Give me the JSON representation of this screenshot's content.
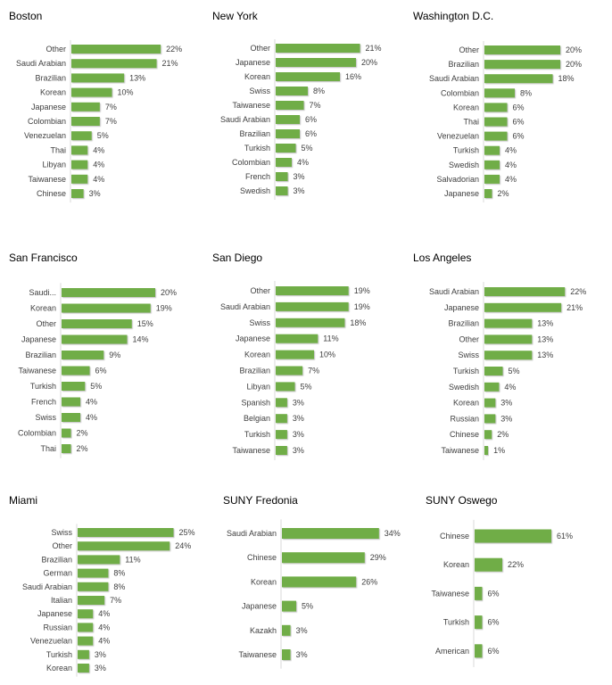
{
  "bar_color": "#70AD47",
  "chart_data": [
    {
      "type": "bar",
      "orientation": "horizontal",
      "title": "Boston",
      "unit": "%",
      "categories": [
        "Other",
        "Saudi Arabian",
        "Brazilian",
        "Korean",
        "Japanese",
        "Colombian",
        "Venezuelan",
        "Thai",
        "Libyan",
        "Taiwanese",
        "Chinese"
      ],
      "values": [
        22,
        21,
        13,
        10,
        7,
        7,
        5,
        4,
        4,
        4,
        3
      ]
    },
    {
      "type": "bar",
      "orientation": "horizontal",
      "title": "New York",
      "unit": "%",
      "categories": [
        "Other",
        "Japanese",
        "Korean",
        "Swiss",
        "Taiwanese",
        "Saudi Arabian",
        "Brazilian",
        "Turkish",
        "Colombian",
        "French",
        "Swedish"
      ],
      "values": [
        21,
        20,
        16,
        8,
        7,
        6,
        6,
        5,
        4,
        3,
        3
      ]
    },
    {
      "type": "bar",
      "orientation": "horizontal",
      "title": "Washington D.C.",
      "unit": "%",
      "categories": [
        "Other",
        "Brazilian",
        "Saudi Arabian",
        "Colombian",
        "Korean",
        "Thai",
        "Venezuelan",
        "Turkish",
        "Swedish",
        "Salvadorian",
        "Japanese"
      ],
      "values": [
        20,
        20,
        18,
        8,
        6,
        6,
        6,
        4,
        4,
        4,
        2
      ]
    },
    {
      "type": "bar",
      "orientation": "horizontal",
      "title": "San Francisco",
      "unit": "%",
      "categories": [
        "Saudi...",
        "Korean",
        "Other",
        "Japanese",
        "Brazilian",
        "Taiwanese",
        "Turkish",
        "French",
        "Swiss",
        "Colombian",
        "Thai"
      ],
      "values": [
        20,
        19,
        15,
        14,
        9,
        6,
        5,
        4,
        4,
        2,
        2
      ]
    },
    {
      "type": "bar",
      "orientation": "horizontal",
      "title": "San Diego",
      "unit": "%",
      "categories": [
        "Other",
        "Saudi Arabian",
        "Swiss",
        "Japanese",
        "Korean",
        "Brazilian",
        "Libyan",
        "Spanish",
        "Belgian",
        "Turkish",
        "Taiwanese"
      ],
      "values": [
        19,
        19,
        18,
        11,
        10,
        7,
        5,
        3,
        3,
        3,
        3
      ]
    },
    {
      "type": "bar",
      "orientation": "horizontal",
      "title": "Los Angeles",
      "unit": "%",
      "categories": [
        "Saudi Arabian",
        "Japanese",
        "Brazilian",
        "Other",
        "Swiss",
        "Turkish",
        "Swedish",
        "Korean",
        "Russian",
        "Chinese",
        "Taiwanese"
      ],
      "values": [
        22,
        21,
        13,
        13,
        13,
        5,
        4,
        3,
        3,
        2,
        1
      ]
    },
    {
      "type": "bar",
      "orientation": "horizontal",
      "title": "Miami",
      "unit": "%",
      "categories": [
        "Swiss",
        "Other",
        "Brazilian",
        "German",
        "Saudi Arabian",
        "Italian",
        "Japanese",
        "Russian",
        "Venezuelan",
        "Turkish",
        "Korean"
      ],
      "values": [
        25,
        24,
        11,
        8,
        8,
        7,
        4,
        4,
        4,
        3,
        3
      ]
    },
    {
      "type": "bar",
      "orientation": "horizontal",
      "title": "SUNY Fredonia",
      "unit": "%",
      "categories": [
        "Saudi Arabian",
        "Chinese",
        "Korean",
        "Japanese",
        "Kazakh",
        "Taiwanese"
      ],
      "values": [
        34,
        29,
        26,
        5,
        3,
        3
      ]
    },
    {
      "type": "bar",
      "orientation": "horizontal",
      "title": "SUNY Oswego",
      "unit": "%",
      "categories": [
        "Chinese",
        "Korean",
        "Taiwanese",
        "Turkish",
        "American"
      ],
      "values": [
        61,
        22,
        6,
        6,
        6
      ]
    }
  ]
}
